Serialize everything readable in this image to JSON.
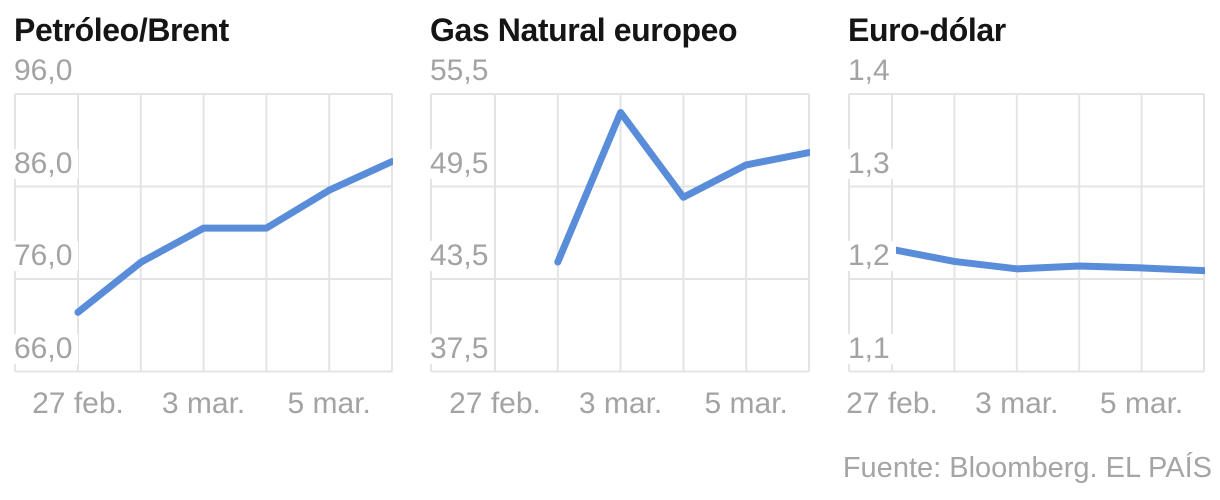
{
  "page": {
    "footer": "Fuente: Bloomberg. EL PAÍS"
  },
  "style": {
    "line_color": "#5a8dd9",
    "grid_color": "#e4e4e4",
    "tick_color": "#a3a3a3",
    "title_color": "#151515",
    "background": "#ffffff"
  },
  "chart_data": [
    {
      "type": "line",
      "title": "Petróleo/Brent",
      "grid": true,
      "legend": null,
      "ylim": [
        66,
        96
      ],
      "yticks": [
        {
          "value": 96,
          "label": "96,0"
        },
        {
          "value": 86,
          "label": "86,0"
        },
        {
          "value": 76,
          "label": "76,0"
        },
        {
          "value": 66,
          "label": "66,0"
        }
      ],
      "x_slots": 6,
      "x_tick_labels": [
        {
          "slot": 0,
          "label": "27 feb."
        },
        {
          "slot": 2,
          "label": "3 mar."
        },
        {
          "slot": 4,
          "label": "5 mar."
        }
      ],
      "points": [
        {
          "slot": 0,
          "value": 72.4
        },
        {
          "slot": 1,
          "value": 77.8
        },
        {
          "slot": 2,
          "value": 81.5
        },
        {
          "slot": 3,
          "value": 81.5
        },
        {
          "slot": 4,
          "value": 85.6
        },
        {
          "slot": 5,
          "value": 88.7
        }
      ]
    },
    {
      "type": "line",
      "title": "Gas Natural europeo",
      "grid": true,
      "legend": null,
      "ylim": [
        37.5,
        55.5
      ],
      "yticks": [
        {
          "value": 55.5,
          "label": "55,5"
        },
        {
          "value": 49.5,
          "label": "49,5"
        },
        {
          "value": 43.5,
          "label": "43,5"
        },
        {
          "value": 37.5,
          "label": "37,5"
        }
      ],
      "x_slots": 6,
      "x_tick_labels": [
        {
          "slot": 0,
          "label": "27 feb."
        },
        {
          "slot": 2,
          "label": "3 mar."
        },
        {
          "slot": 4,
          "label": "5 mar."
        }
      ],
      "points": [
        {
          "slot": 1,
          "value": 44.6
        },
        {
          "slot": 2,
          "value": 54.3
        },
        {
          "slot": 3,
          "value": 48.8
        },
        {
          "slot": 4,
          "value": 50.9
        },
        {
          "slot": 5,
          "value": 51.7
        }
      ]
    },
    {
      "type": "line",
      "title": "Euro-dólar",
      "grid": true,
      "legend": null,
      "ylim": [
        1.1,
        1.4
      ],
      "yticks": [
        {
          "value": 1.4,
          "label": "1,4"
        },
        {
          "value": 1.3,
          "label": "1,3"
        },
        {
          "value": 1.2,
          "label": "1,2"
        },
        {
          "value": 1.1,
          "label": "1,1"
        }
      ],
      "x_slots": 6,
      "x_tick_labels": [
        {
          "slot": 0,
          "label": "27 feb."
        },
        {
          "slot": 2,
          "label": "3 mar."
        },
        {
          "slot": 4,
          "label": "5 mar."
        }
      ],
      "points": [
        {
          "slot": 0,
          "value": 1.232
        },
        {
          "slot": 1,
          "value": 1.219
        },
        {
          "slot": 2,
          "value": 1.211
        },
        {
          "slot": 3,
          "value": 1.214
        },
        {
          "slot": 4,
          "value": 1.212
        },
        {
          "slot": 5,
          "value": 1.209
        }
      ]
    }
  ]
}
